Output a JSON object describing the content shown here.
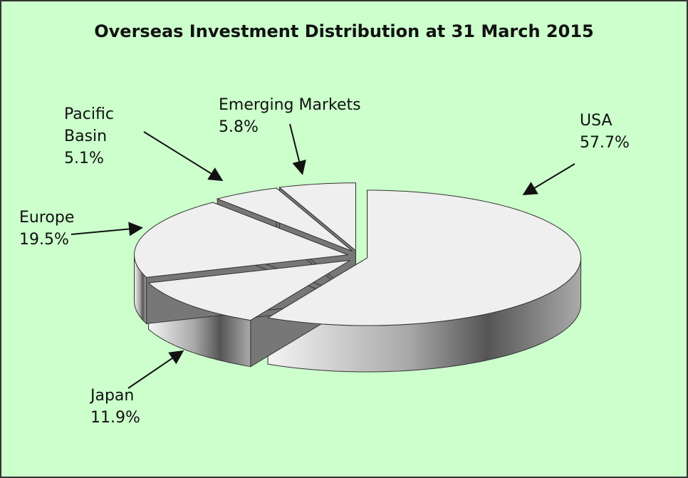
{
  "chart_data": {
    "type": "pie",
    "title": "Overseas Investment Distribution at 31 March 2015",
    "categories": [
      "USA",
      "Japan",
      "Europe",
      "Pacific Basin",
      "Emerging Markets"
    ],
    "values": [
      57.7,
      11.9,
      19.5,
      5.1,
      5.8
    ],
    "value_labels": [
      "57.7%",
      "11.9%",
      "19.5%",
      "5.1%",
      "5.8%"
    ],
    "color": "#efefef"
  }
}
